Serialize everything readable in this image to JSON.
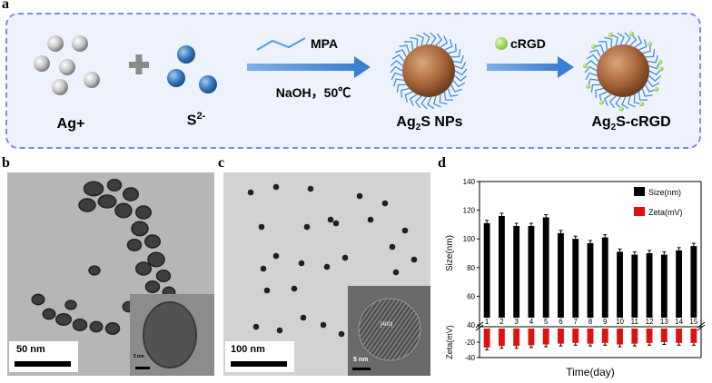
{
  "panels": {
    "a": "a",
    "b": "b",
    "c": "c",
    "d": "d"
  },
  "scheme": {
    "reactant1": "Ag+",
    "plus": "+",
    "reactant2_base": "S",
    "reactant2_sup": "2-",
    "reagent_top": "MPA",
    "reagent_bottom": "NaOH，50℃",
    "product1_a": "Ag",
    "product1_sub": "2",
    "product1_b": "S NPs",
    "reagent2": "cRGD",
    "product2_a": "Ag",
    "product2_sub": "2",
    "product2_b": "S-cRGD"
  },
  "tem_b": {
    "scale_main": "50 nm",
    "scale_inset": "5 nm"
  },
  "tem_c": {
    "scale_main": "100 nm",
    "scale_inset": "5 nm",
    "lattice_label": "[400]"
  },
  "chart_data": {
    "type": "bar",
    "categories": [
      "1",
      "2",
      "3",
      "4",
      "5",
      "6",
      "7",
      "8",
      "9",
      "10",
      "11",
      "12",
      "13",
      "14",
      "15"
    ],
    "series": [
      {
        "name": "Size(nm)",
        "color": "#000000",
        "values": [
          111,
          116,
          109,
          109,
          115,
          104,
          100,
          97,
          101,
          91,
          89,
          90,
          89,
          92,
          95
        ]
      },
      {
        "name": "Zeta(mV)",
        "color": "#e01010",
        "values": [
          -27,
          -25,
          -25,
          -24,
          -23,
          -22,
          -21,
          -22,
          -21,
          -23,
          -22,
          -21,
          -20,
          -21,
          -21
        ]
      }
    ],
    "xlabel": "Time(day)",
    "ylabel_top": "Size(nm)",
    "ylabel_bottom": "Zeta(mV)",
    "top_ylim": [
      40,
      140
    ],
    "top_yticks": [
      40,
      60,
      80,
      100,
      120,
      140
    ],
    "bottom_ylim": [
      -40,
      0
    ],
    "bottom_yticks": [
      -40,
      -20
    ],
    "legend_position": "top-right"
  }
}
